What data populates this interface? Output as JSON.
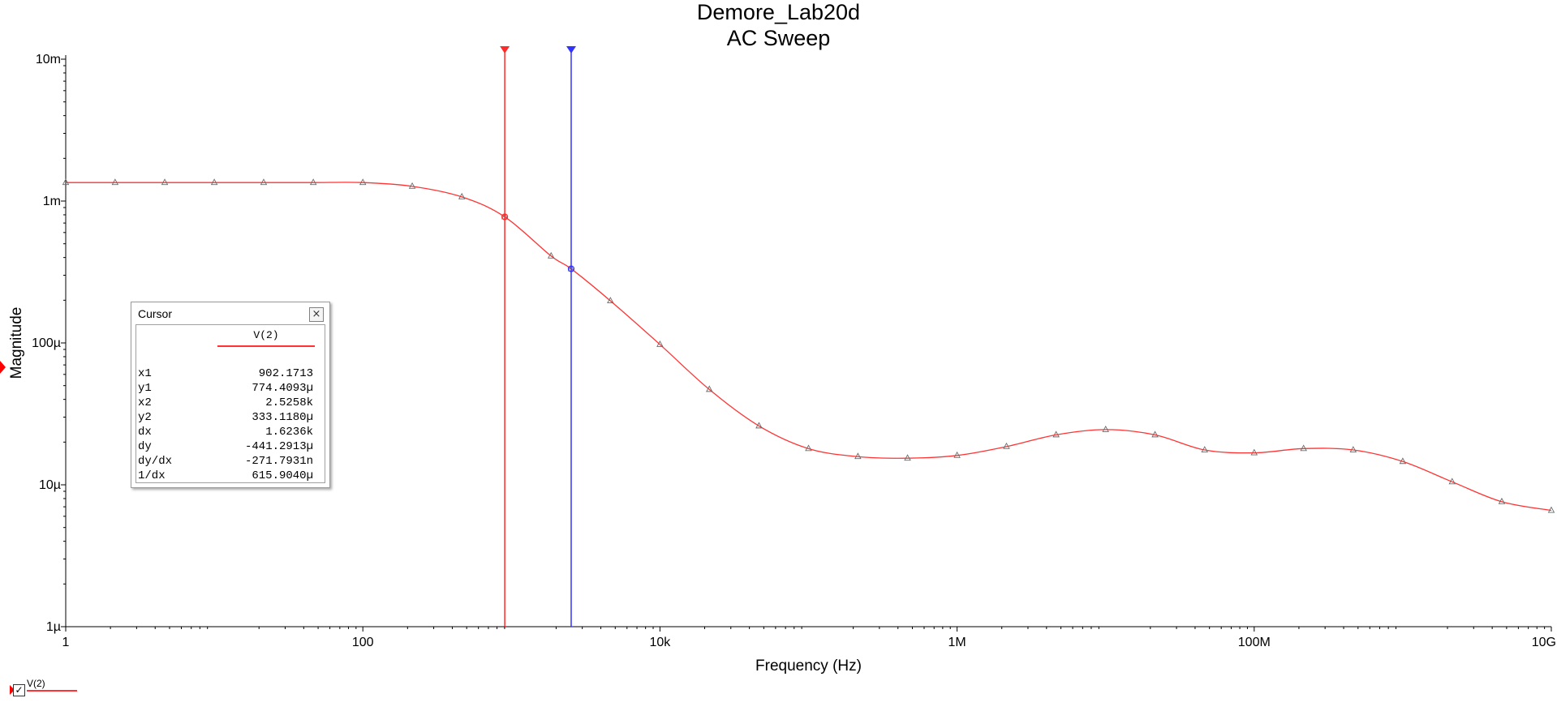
{
  "chart_data": {
    "type": "line",
    "title": "Demore_Lab20d",
    "subtitle": "AC Sweep",
    "xlabel": "Frequency (Hz)",
    "ylabel": "Magnitude",
    "x_scale": "log",
    "y_scale": "log",
    "xlim": [
      1,
      10000000000
    ],
    "ylim": [
      1e-06,
      0.01
    ],
    "x_ticks": [
      {
        "value": 1,
        "label": "1"
      },
      {
        "value": 100,
        "label": "100"
      },
      {
        "value": 10000,
        "label": "10k"
      },
      {
        "value": 1000000,
        "label": "1M"
      },
      {
        "value": 100000000,
        "label": "100M"
      },
      {
        "value": 10000000000,
        "label": "10G"
      }
    ],
    "y_ticks": [
      {
        "value": 0.01,
        "label": "10m"
      },
      {
        "value": 0.001,
        "label": "1m"
      },
      {
        "value": 0.0001,
        "label": "100µ"
      },
      {
        "value": 1e-05,
        "label": "10µ"
      },
      {
        "value": 1e-06,
        "label": "1µ"
      }
    ],
    "grid": false,
    "legend_position": "bottom-left",
    "series": [
      {
        "name": "V(2)",
        "color": "#ff3333",
        "marker": "triangle",
        "x": [
          1,
          2.15,
          4.64,
          10,
          21.5,
          46.4,
          100,
          215,
          464,
          902,
          1850,
          2526,
          4640,
          10000,
          21500,
          46400,
          100000,
          215000,
          464000,
          1000000,
          2150000,
          4640000,
          10000000,
          21500000,
          46400000,
          100000000,
          215000000,
          464000000,
          1000000000,
          2150000000,
          4640000000,
          10000000000
        ],
        "y": [
          0.00135,
          0.00135,
          0.00135,
          0.00135,
          0.00135,
          0.00135,
          0.00135,
          0.00127,
          0.00107,
          0.000774,
          0.00041,
          0.000333,
          0.000198,
          9.75e-05,
          4.7e-05,
          2.6e-05,
          1.8e-05,
          1.58e-05,
          1.54e-05,
          1.61e-05,
          1.86e-05,
          2.25e-05,
          2.45e-05,
          2.25e-05,
          1.76e-05,
          1.68e-05,
          1.8e-05,
          1.76e-05,
          1.46e-05,
          1.05e-05,
          7.6e-06,
          6.6e-06
        ]
      }
    ],
    "cursors": [
      {
        "name": "cursor-1",
        "color": "#ff2a2a",
        "x": 902.1713,
        "y": 0.0007744093
      },
      {
        "name": "cursor-2",
        "color": "#3333ff",
        "x": 2525.8,
        "y": 0.000333118
      }
    ]
  },
  "cursor_window": {
    "title": "Cursor",
    "close_glyph": "×",
    "trace": "V(2)",
    "rows": [
      {
        "key": "x1",
        "value": "902.1713"
      },
      {
        "key": "y1",
        "value": "774.4093µ"
      },
      {
        "key": "x2",
        "value": "2.5258k"
      },
      {
        "key": "y2",
        "value": "333.1180µ"
      },
      {
        "key": "dx",
        "value": "1.6236k"
      },
      {
        "key": "dy",
        "value": "-441.2913µ"
      },
      {
        "key": "dy/dx",
        "value": "-271.7931n"
      },
      {
        "key": "1/dx",
        "value": "615.9040µ"
      }
    ]
  },
  "legend": {
    "checkbox_glyph": "✓",
    "label": "V(2)"
  }
}
